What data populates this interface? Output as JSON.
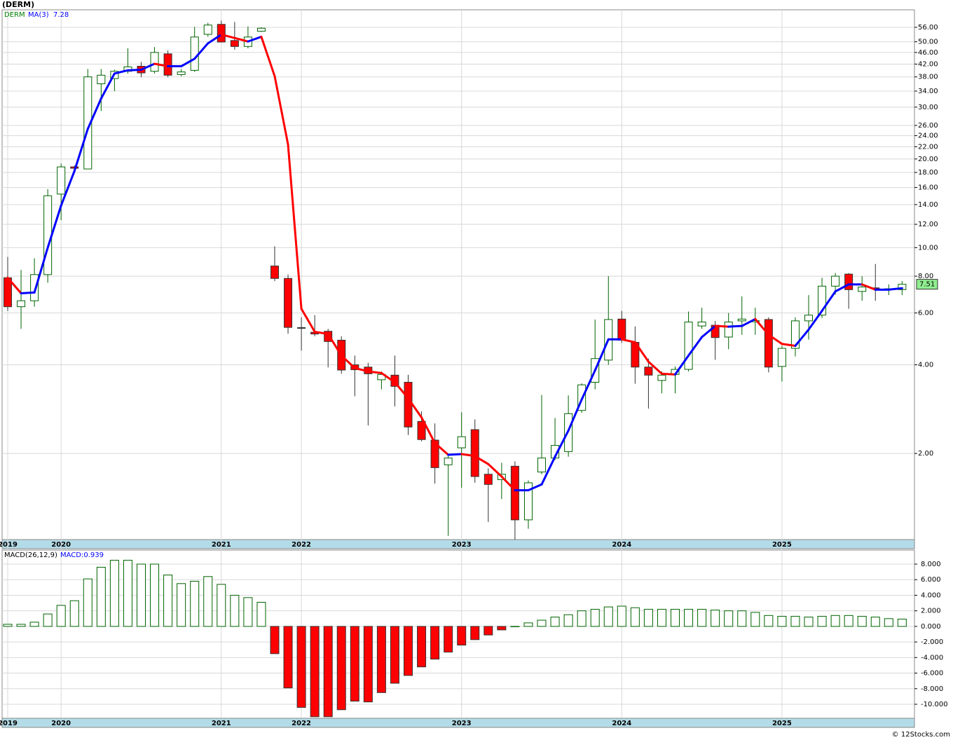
{
  "chart_data": [
    {
      "type": "candlestick",
      "title": "(DERM)",
      "name": "DERM",
      "log_scale": true,
      "grid": true,
      "up_color": "#ffffff",
      "up_stroke": "#006400",
      "down_color": "#ff0000",
      "down_stroke": "#333333",
      "categories": [
        "2019",
        null,
        null,
        null,
        "2020",
        null,
        null,
        null,
        null,
        null,
        null,
        null,
        null,
        null,
        null,
        null,
        "2021",
        null,
        null,
        null,
        null,
        null,
        "2022",
        null,
        null,
        null,
        null,
        null,
        null,
        null,
        null,
        null,
        null,
        null,
        "2023",
        null,
        null,
        null,
        null,
        null,
        null,
        null,
        null,
        null,
        null,
        null,
        "2024",
        null,
        null,
        null,
        null,
        null,
        null,
        null,
        null,
        null,
        null,
        null,
        "2025",
        null,
        null,
        null,
        null,
        null,
        null,
        null,
        null,
        null
      ],
      "open": [
        7.9,
        6.3,
        6.6,
        8.1,
        15.2,
        18.8,
        18.5,
        36.0,
        37.5,
        39.7,
        41.3,
        39.7,
        45.5,
        38.7,
        40.0,
        53.0,
        57.3,
        50.5,
        48.2,
        54.3,
        8.66,
        7.86,
        5.35,
        5.16,
        5.2,
        4.85,
        4.0,
        3.93,
        3.56,
        3.69,
        3.49,
        2.57,
        2.22,
        1.83,
        2.09,
        2.41,
        1.7,
        1.63,
        1.81,
        1.19,
        1.73,
        1.93,
        2.03,
        2.8,
        3.49,
        4.15,
        5.72,
        4.77,
        3.93,
        3.54,
        3.71,
        3.86,
        5.42,
        5.45,
        4.97,
        5.64,
        5.6,
        5.7,
        3.95,
        4.55,
        5.64,
        5.9,
        7.4,
        8.13,
        7.1,
        7.3,
        7.2,
        7.2
      ],
      "high": [
        9.3,
        8.4,
        9.2,
        15.8,
        19.3,
        19.0,
        40.4,
        40.4,
        40.2,
        47.5,
        42.7,
        48.0,
        46.7,
        40.4,
        56.2,
        58.0,
        59.0,
        58.4,
        56.4,
        56.0,
        10.1,
        8.1,
        5.8,
        5.9,
        5.3,
        5.0,
        4.3,
        4.06,
        3.8,
        4.3,
        3.7,
        2.78,
        2.53,
        2.0,
        2.76,
        2.61,
        1.78,
        1.86,
        1.88,
        1.62,
        3.16,
        2.64,
        3.15,
        3.46,
        5.7,
        8.0,
        6.1,
        5.4,
        4.2,
        3.8,
        3.95,
        6.07,
        6.25,
        5.64,
        6.0,
        6.83,
        6.25,
        5.8,
        4.64,
        5.8,
        6.9,
        7.9,
        8.2,
        8.2,
        8.0,
        8.8,
        7.5,
        7.7
      ],
      "low": [
        6.1,
        5.3,
        6.3,
        7.6,
        12.4,
        18.4,
        18.5,
        29.1,
        34.0,
        39.0,
        37.9,
        39.0,
        37.9,
        38.2,
        39.5,
        52.0,
        49.9,
        47.0,
        47.5,
        54.0,
        7.7,
        5.1,
        4.47,
        5.0,
        3.92,
        3.73,
        3.13,
        2.49,
        3.3,
        2.89,
        2.31,
        2.2,
        1.58,
        1.05,
        1.53,
        1.59,
        1.17,
        1.4,
        1.02,
        1.11,
        1.7,
        1.9,
        1.95,
        2.75,
        3.3,
        4.0,
        4.75,
        3.45,
        2.84,
        3.2,
        3.2,
        3.8,
        5.3,
        4.16,
        4.52,
        5.06,
        5.06,
        3.77,
        3.51,
        4.27,
        4.87,
        5.77,
        6.93,
        6.2,
        6.6,
        6.6,
        6.9,
        6.9
      ],
      "close": [
        6.3,
        6.6,
        8.1,
        15.0,
        18.8,
        18.6,
        38.0,
        38.5,
        39.7,
        41.1,
        39.2,
        46.0,
        38.5,
        39.5,
        51.9,
        57.0,
        49.9,
        48.2,
        51.9,
        55.6,
        7.86,
        5.36,
        5.33,
        5.09,
        4.8,
        3.84,
        3.85,
        3.73,
        3.71,
        3.38,
        2.46,
        2.23,
        1.79,
        1.93,
        2.28,
        1.67,
        1.57,
        1.7,
        1.19,
        1.59,
        1.93,
        2.13,
        2.73,
        3.42,
        4.2,
        5.7,
        4.85,
        3.93,
        3.69,
        3.69,
        3.86,
        5.59,
        5.59,
        4.95,
        5.59,
        5.72,
        5.65,
        3.93,
        4.55,
        5.64,
        5.9,
        7.4,
        8.0,
        7.2,
        7.35,
        7.25,
        7.25,
        7.51
      ],
      "ma": {
        "name": "MA(3)",
        "up_color": "#0000ff",
        "down_color": "#ff0000",
        "values": [
          7.9,
          7.0,
          7.04,
          10.0,
          13.9,
          18.2,
          25.3,
          32.1,
          39.0,
          40.0,
          40.2,
          42.1,
          41.3,
          41.3,
          43.8,
          49.4,
          52.9,
          51.5,
          50.1,
          52.0,
          38.2,
          22.4,
          6.2,
          5.18,
          5.09,
          4.3,
          3.9,
          3.8,
          3.75,
          3.49,
          3.08,
          2.65,
          2.17,
          1.98,
          1.99,
          1.96,
          1.84,
          1.67,
          1.5,
          1.5,
          1.57,
          1.95,
          2.39,
          3.05,
          3.83,
          4.88,
          4.88,
          4.77,
          4.1,
          3.73,
          3.71,
          4.3,
          4.97,
          5.42,
          5.39,
          5.42,
          5.72,
          5.06,
          4.71,
          4.64,
          5.27,
          6.1,
          7.1,
          7.5,
          7.5,
          7.2,
          7.2,
          7.28
        ]
      },
      "ylim": [
        1.02,
        64.2
      ],
      "yticks": [
        {
          "value": 2,
          "label": "2.00"
        },
        {
          "value": 4,
          "label": "4.00"
        },
        {
          "value": 6,
          "label": "6.00"
        },
        {
          "value": 8,
          "label": "8.00"
        },
        {
          "value": 10,
          "label": "10.00"
        },
        {
          "value": 12,
          "label": "12.00"
        },
        {
          "value": 14,
          "label": "14.00"
        },
        {
          "value": 16,
          "label": "16.00"
        },
        {
          "value": 18,
          "label": "18.00"
        },
        {
          "value": 20,
          "label": "20.00"
        },
        {
          "value": 22,
          "label": "22.00"
        },
        {
          "value": 24,
          "label": "24.00"
        },
        {
          "value": 26,
          "label": "26.00"
        },
        {
          "value": 30,
          "label": "30.00"
        },
        {
          "value": 34,
          "label": "34.00"
        },
        {
          "value": 38,
          "label": "38.00"
        },
        {
          "value": 42,
          "label": "42.00"
        },
        {
          "value": 46,
          "label": "46.00"
        },
        {
          "value": 50,
          "label": "50.00"
        },
        {
          "value": 56,
          "label": "56.00"
        }
      ]
    },
    {
      "type": "histogram_bars",
      "title": "MACD(26,12,9)",
      "value_text": "MACD:0.939",
      "positive_color": "#006400",
      "negative_color": "#ff0000",
      "grid": true,
      "values": [
        0.27,
        0.27,
        0.54,
        1.6,
        2.7,
        3.3,
        6.1,
        7.6,
        8.5,
        8.5,
        8.0,
        8.0,
        6.6,
        5.5,
        5.8,
        6.4,
        5.4,
        4.0,
        3.7,
        3.1,
        -3.5,
        -7.9,
        -10.4,
        -11.6,
        -11.6,
        -10.7,
        -9.6,
        -9.7,
        -8.5,
        -7.3,
        -6.3,
        -5.2,
        -4.2,
        -3.3,
        -2.4,
        -1.7,
        -1.1,
        -0.45,
        0.0,
        0.45,
        0.8,
        1.2,
        1.5,
        2.0,
        2.2,
        2.5,
        2.6,
        2.4,
        2.2,
        2.2,
        2.2,
        2.2,
        2.2,
        2.1,
        2.0,
        2.0,
        1.8,
        1.4,
        1.3,
        1.3,
        1.2,
        1.3,
        1.4,
        1.4,
        1.3,
        1.2,
        1.0,
        0.939
      ],
      "ylim": [
        -11.8,
        9.8
      ],
      "yticks": [
        {
          "value": 8,
          "label": "8.000"
        },
        {
          "value": 6,
          "label": "6.000"
        },
        {
          "value": 4,
          "label": "4.000"
        },
        {
          "value": 2,
          "label": "2.000"
        },
        {
          "value": 0,
          "label": "0.000"
        },
        {
          "value": -2,
          "label": "-2.000"
        },
        {
          "value": -4,
          "label": "-4.000"
        },
        {
          "value": -6,
          "label": "-6.000"
        },
        {
          "value": -8,
          "label": "-8.000"
        },
        {
          "value": -10,
          "label": "-10.000"
        }
      ]
    }
  ],
  "footer": "© 12Stocks.com"
}
